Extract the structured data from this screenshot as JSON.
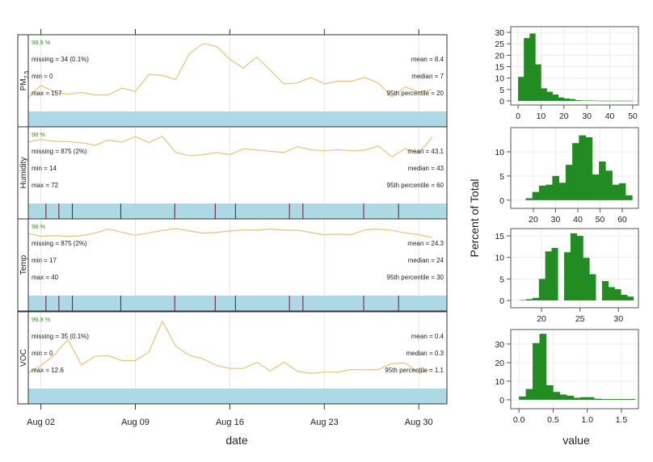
{
  "colors": {
    "line": "#e8c27a",
    "bar": "#add8e6",
    "missing_mark": "#7a1030",
    "percent_text": "#3a8a2e",
    "hist_fill": "#228b22",
    "grid": "#e4e4e4"
  },
  "chart_data": [
    {
      "type": "line",
      "xlabel": "date",
      "x_ticks": [
        "Aug 02",
        "Aug 09",
        "Aug 16",
        "Aug 23",
        "Aug 30"
      ],
      "xlim": [
        "Aug 01",
        "Sep 01"
      ],
      "x": [
        "Aug 01",
        "Aug 02",
        "Aug 03",
        "Aug 04",
        "Aug 05",
        "Aug 06",
        "Aug 07",
        "Aug 08",
        "Aug 09",
        "Aug 10",
        "Aug 11",
        "Aug 12",
        "Aug 13",
        "Aug 14",
        "Aug 15",
        "Aug 16",
        "Aug 17",
        "Aug 18",
        "Aug 19",
        "Aug 20",
        "Aug 21",
        "Aug 22",
        "Aug 23",
        "Aug 24",
        "Aug 25",
        "Aug 26",
        "Aug 27",
        "Aug 28",
        "Aug 29",
        "Aug 30",
        "Aug 31"
      ],
      "panels": [
        {
          "name": "PM",
          "name_sub": "2.5",
          "percent": "99.9 %",
          "missing": "missing = 34 (0.1%)",
          "min": "min = 0",
          "max": "max = 157",
          "mean": "mean = 8.4",
          "median": "median = 7",
          "p95": "95th percentile = 20",
          "ylim": [
            0.15,
            22.6
          ],
          "values": [
            4,
            7.8,
            5.8,
            5.2,
            5.7,
            5,
            5,
            7,
            6,
            11,
            10.7,
            9.5,
            17,
            20,
            19.2,
            15.4,
            12.9,
            16.1,
            12.2,
            8.2,
            8.5,
            10.1,
            8.2,
            9,
            9,
            10.1,
            8.5,
            4.4,
            7.3,
            5.8,
            6.6
          ],
          "missing_times": []
        },
        {
          "name": "Humidity",
          "name_sub": "",
          "percent": "98 %",
          "missing": "missing = 875 (2%)",
          "min": "min = 14",
          "max": "max = 72",
          "mean": "mean = 43.1",
          "median": "median = 43",
          "p95": "95th percentile = 60",
          "ylim": [
            -2.6,
            68.8
          ],
          "values": [
            54.5,
            57,
            55.3,
            55,
            54,
            51.5,
            56.5,
            54.5,
            59.8,
            54,
            60,
            44.8,
            42,
            42.8,
            44.8,
            42.8,
            48.3,
            47.3,
            46,
            44.8,
            50.3,
            47.5,
            46.5,
            47.5,
            46.5,
            47,
            51,
            40.8,
            48.5,
            44.5,
            59
          ],
          "missing_times": [
            "Aug 02 09:00",
            "Aug 03 08:00",
            "Aug 04 08:00",
            "Aug 07 22:00",
            "Aug 11 22:00",
            "Aug 14 22:00",
            "Aug 16 10:00",
            "Aug 20 10:00",
            "Aug 21 10:00",
            "Aug 25 22:00",
            "Aug 28 12:00"
          ]
        },
        {
          "name": "Temp",
          "name_sub": "",
          "percent": "98 %",
          "missing": "missing = 875 (2%)",
          "min": "min = 17",
          "max": "max = 40",
          "mean": "mean = 24.3",
          "median": "median = 24",
          "p95": "95th percentile = 30",
          "ylim": [
            2.9,
            31.5
          ],
          "values": [
            26.1,
            25,
            25.3,
            25,
            25.2,
            26.2,
            27.7,
            26.5,
            25.4,
            26.3,
            27.2,
            27.9,
            27,
            26.2,
            26.4,
            27,
            27.4,
            27.3,
            27.7,
            27.3,
            27.3,
            26.4,
            25.6,
            25.8,
            25.6,
            27.4,
            27.7,
            27.2,
            26.3,
            25.6,
            24.5
          ],
          "missing_times": [
            "Aug 02 09:00",
            "Aug 03 08:00",
            "Aug 04 08:00",
            "Aug 07 22:00",
            "Aug 11 22:00",
            "Aug 14 22:00",
            "Aug 16 10:00",
            "Aug 20 10:00",
            "Aug 21 10:00",
            "Aug 25 22:00",
            "Aug 28 12:00"
          ]
        },
        {
          "name": "VOC",
          "name_sub": "",
          "percent": "99.9 %",
          "missing": "missing = 35 (0.1%)",
          "min": "min = 0",
          "max": "max = 12.6",
          "mean": "mean = 0.4",
          "median": "median = 0.3",
          "p95": "95th percentile = 1.1",
          "ylim": [
            -0.25,
            2.09
          ],
          "values": [
            0.21,
            0.45,
            0.77,
            1.25,
            0.47,
            0.73,
            0.75,
            0.6,
            0.6,
            0.86,
            1.8,
            1.04,
            0.76,
            0.66,
            0.45,
            0.36,
            0.36,
            0.55,
            0.29,
            0.55,
            0.28,
            0.21,
            0.25,
            0.25,
            0.33,
            0.32,
            0.33,
            0.51,
            0.53,
            0.21,
            0.35
          ],
          "missing_times": []
        }
      ]
    },
    {
      "type": "bar",
      "ylabel": "Percent of Total",
      "xlabel": "value",
      "panels": [
        {
          "xlim": [
            -3.2,
            52.5
          ],
          "ylim": [
            -1.8,
            32.5
          ],
          "x_ticks": [
            0,
            10,
            20,
            30,
            40,
            50
          ],
          "y_ticks": [
            0,
            5,
            10,
            15,
            20,
            25,
            30
          ],
          "bin_start": 0,
          "bin_width": 2.5,
          "values": [
            10.5,
            27.5,
            29.5,
            16,
            5.5,
            4,
            2.8,
            1.5,
            1,
            0.8,
            0.3,
            0.2,
            0.2,
            0.1,
            0.05,
            0.05,
            0.05,
            0.05,
            0.05,
            0.05
          ]
        },
        {
          "xlim": [
            9.8,
            67.3
          ],
          "ylim": [
            -1.7,
            15
          ],
          "x_ticks": [
            20,
            30,
            40,
            50,
            60
          ],
          "y_ticks": [
            0,
            5,
            10
          ],
          "bin_start": 16.5,
          "bin_width": 3,
          "values": [
            0.4,
            1.7,
            3.0,
            3.2,
            5.0,
            3.6,
            7.3,
            11.8,
            13.4,
            13,
            5.3,
            8,
            6.1,
            3.2,
            3.5,
            1
          ]
        },
        {
          "xlim": [
            16,
            32.6
          ],
          "ylim": [
            -1.7,
            16.7
          ],
          "x_ticks": [
            20,
            25,
            30
          ],
          "y_ticks": [
            0,
            5,
            10,
            15
          ],
          "bin_start": 17.2,
          "bin_width": 0.82,
          "values": [
            0.1,
            0.3,
            0.6,
            5,
            11.4,
            12.2,
            0,
            11.2,
            15.6,
            15,
            9.9,
            6.1,
            0,
            4.5,
            3.1,
            2.6,
            1.3,
            0.9
          ]
        },
        {
          "xlim": [
            -0.12,
            1.75
          ],
          "ylim": [
            -4.8,
            37.8
          ],
          "x_ticks": [
            "0.0",
            "0.5",
            "1.0",
            "1.5"
          ],
          "y_ticks": [
            0,
            10,
            20,
            30
          ],
          "bin_start": 0,
          "bin_width": 0.1,
          "values": [
            1.8,
            5.8,
            30.5,
            35.5,
            7.8,
            4.2,
            2.8,
            2.2,
            1.1,
            1.4,
            1.4,
            0.6,
            0.4,
            0.4,
            0.4,
            0.4,
            0.4
          ]
        }
      ]
    }
  ]
}
